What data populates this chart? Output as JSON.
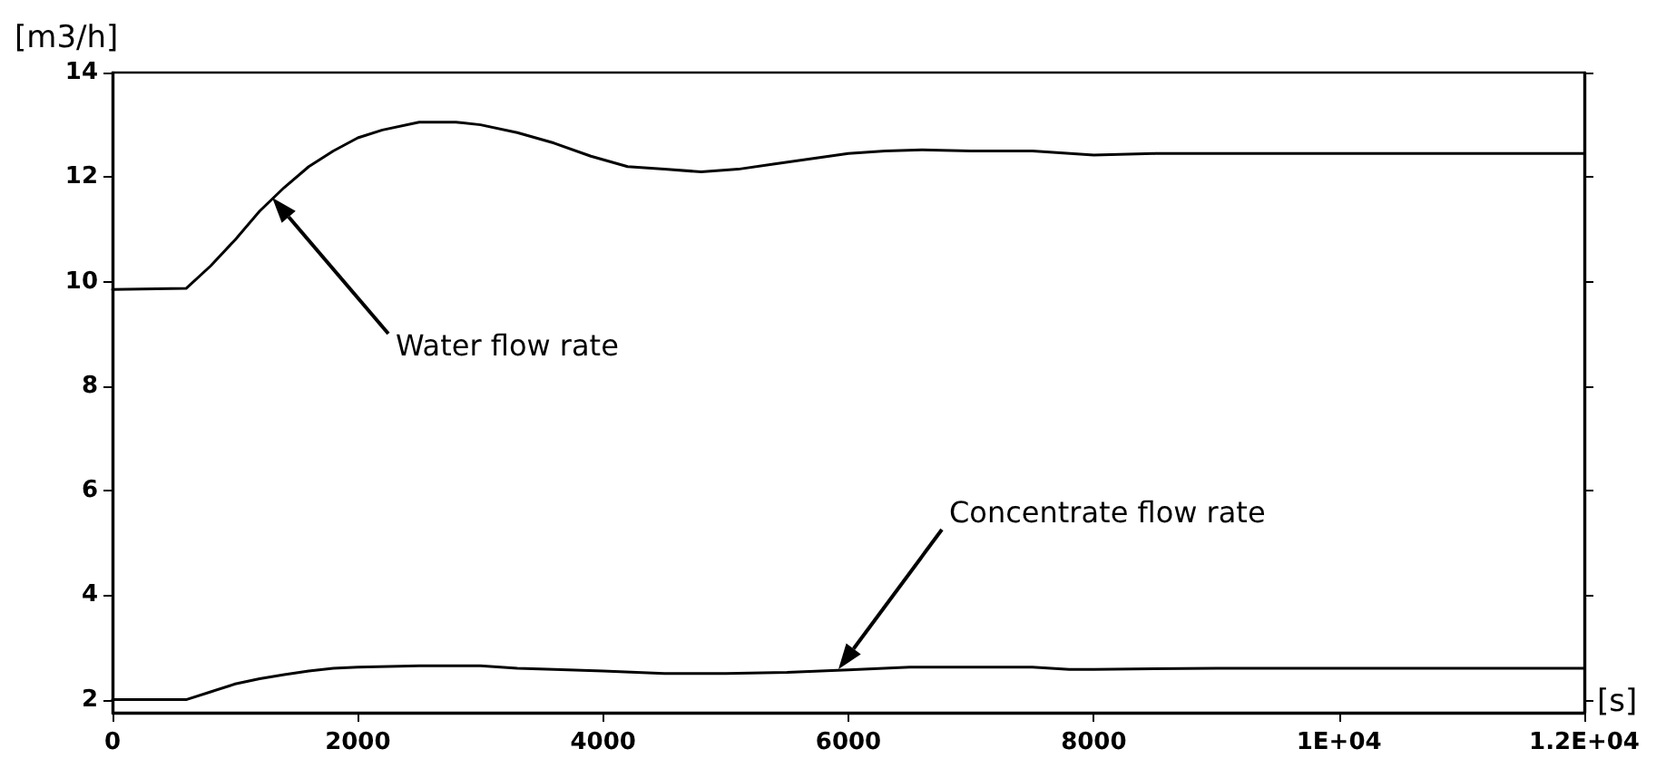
{
  "chart_data": {
    "type": "line",
    "xlabel": "[s]",
    "ylabel": "[m3/h]",
    "xlim": [
      0,
      12000
    ],
    "xticks": [
      0,
      2000,
      4000,
      6000,
      8000,
      {
        "value": 10000,
        "label": "1E+04"
      },
      {
        "value": 12000,
        "label": "1.2E+04"
      }
    ],
    "ylim": [
      1.75,
      14
    ],
    "yticks": [
      2,
      4,
      6,
      8,
      10,
      12,
      14
    ],
    "grid": false,
    "marker": "none",
    "line_style": "solid",
    "series": [
      {
        "color": "#000000",
        "x": [
          0,
          600,
          800,
          1000,
          1200,
          1400,
          1600,
          1800,
          2000,
          2200,
          2500,
          2800,
          3000,
          3300,
          3600,
          3900,
          4200,
          4500,
          4800,
          5100,
          5400,
          5700,
          6000,
          6300,
          6600,
          7000,
          7500,
          8000,
          8500,
          9000,
          10000,
          11000,
          12000
        ],
        "values": [
          9.85,
          9.87,
          10.3,
          10.8,
          11.35,
          11.8,
          12.2,
          12.5,
          12.75,
          12.9,
          13.05,
          13.05,
          13.0,
          12.85,
          12.65,
          12.4,
          12.2,
          12.15,
          12.1,
          12.15,
          12.25,
          12.35,
          12.45,
          12.5,
          12.52,
          12.5,
          12.5,
          12.42,
          12.45,
          12.45,
          12.45,
          12.45,
          12.45
        ]
      },
      {
        "color": "#000000",
        "x": [
          0,
          600,
          800,
          1000,
          1200,
          1400,
          1600,
          1800,
          2000,
          2500,
          3000,
          3300,
          3600,
          4000,
          4500,
          5000,
          5500,
          6000,
          6500,
          7000,
          7500,
          7800,
          8000,
          9000,
          10000,
          11000,
          12000
        ],
        "values": [
          2.0,
          2.0,
          2.15,
          2.3,
          2.4,
          2.48,
          2.55,
          2.6,
          2.62,
          2.65,
          2.65,
          2.6,
          2.58,
          2.55,
          2.5,
          2.5,
          2.52,
          2.57,
          2.62,
          2.62,
          2.62,
          2.58,
          2.58,
          2.6,
          2.6,
          2.6,
          2.6
        ]
      }
    ],
    "annotations": [
      "Water flow rate",
      "Concentrate flow rate"
    ]
  }
}
